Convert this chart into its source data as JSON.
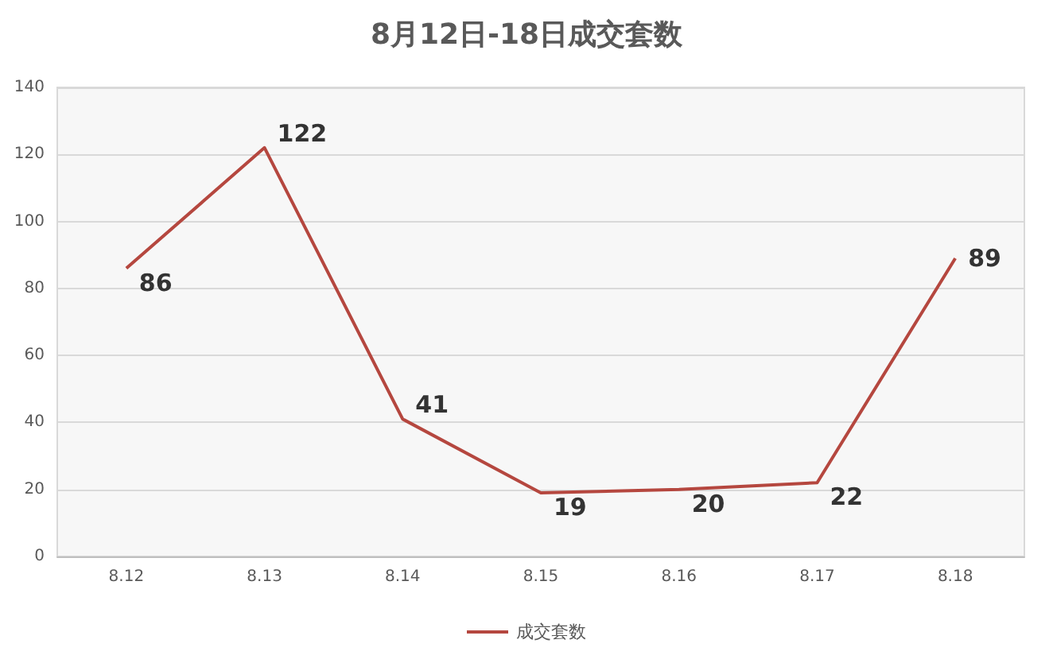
{
  "chart_data": {
    "type": "line",
    "title": "8月12日-18日成交套数",
    "categories": [
      "8.12",
      "8.13",
      "8.14",
      "8.15",
      "8.16",
      "8.17",
      "8.18"
    ],
    "series": [
      {
        "name": "成交套数",
        "color": "#b5473f",
        "values": [
          86,
          122,
          41,
          19,
          20,
          22,
          89
        ]
      }
    ],
    "ylim": [
      0,
      140
    ],
    "yticks": [
      0,
      20,
      40,
      60,
      80,
      100,
      120,
      140
    ],
    "grid": "y",
    "legend": "bottom",
    "data_labels": true,
    "marker": "none",
    "line_style": "solid"
  }
}
